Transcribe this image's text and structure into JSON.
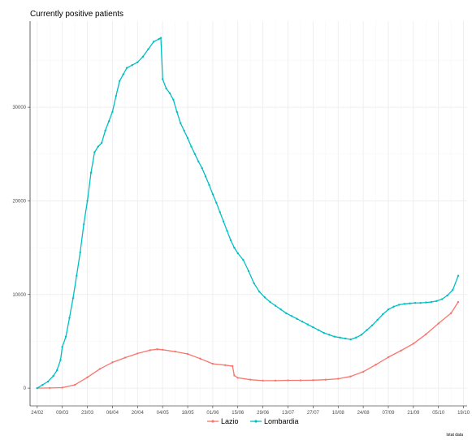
{
  "chart_data": {
    "type": "line",
    "title": "Currently positive patients",
    "caption": "Istat data",
    "x_tick_labels": [
      "24/02",
      "09/03",
      "23/03",
      "06/04",
      "20/04",
      "04/05",
      "18/05",
      "01/06",
      "15/06",
      "29/06",
      "13/07",
      "27/07",
      "10/08",
      "24/08",
      "07/09",
      "21/09",
      "05/10",
      "19/10"
    ],
    "x_tick_days": [
      0,
      14,
      28,
      42,
      56,
      70,
      84,
      98,
      112,
      126,
      140,
      154,
      168,
      182,
      196,
      210,
      224,
      238
    ],
    "y_ticks": [
      0,
      10000,
      20000,
      30000
    ],
    "y_tick_labels": [
      "0",
      "10000",
      "20000",
      "30000"
    ],
    "xlim_days": [
      -4,
      240
    ],
    "ylim": [
      -1900,
      39200
    ],
    "legend_position": "bottom",
    "grid": true,
    "series": [
      {
        "name": "Lazio",
        "color": "#F8766D",
        "points": [
          [
            0,
            0
          ],
          [
            7,
            15
          ],
          [
            14,
            50
          ],
          [
            21,
            350
          ],
          [
            28,
            1150
          ],
          [
            35,
            2050
          ],
          [
            42,
            2750
          ],
          [
            49,
            3250
          ],
          [
            56,
            3700
          ],
          [
            63,
            4050
          ],
          [
            67,
            4150
          ],
          [
            70,
            4100
          ],
          [
            77,
            3900
          ],
          [
            84,
            3650
          ],
          [
            91,
            3150
          ],
          [
            98,
            2600
          ],
          [
            105,
            2450
          ],
          [
            109,
            2350
          ],
          [
            110,
            1350
          ],
          [
            112,
            1100
          ],
          [
            119,
            900
          ],
          [
            126,
            800
          ],
          [
            133,
            800
          ],
          [
            140,
            830
          ],
          [
            147,
            830
          ],
          [
            154,
            850
          ],
          [
            161,
            900
          ],
          [
            168,
            1000
          ],
          [
            175,
            1250
          ],
          [
            182,
            1750
          ],
          [
            189,
            2500
          ],
          [
            196,
            3300
          ],
          [
            203,
            4000
          ],
          [
            210,
            4750
          ],
          [
            217,
            5750
          ],
          [
            224,
            6900
          ],
          [
            231,
            8000
          ],
          [
            235,
            9200
          ]
        ]
      },
      {
        "name": "Lombardia",
        "color": "#00BFC4",
        "points": [
          [
            0,
            0
          ],
          [
            3,
            350
          ],
          [
            6,
            700
          ],
          [
            9,
            1300
          ],
          [
            11,
            1900
          ],
          [
            13,
            3000
          ],
          [
            14,
            4400
          ],
          [
            16,
            5500
          ],
          [
            18,
            7500
          ],
          [
            20,
            9600
          ],
          [
            22,
            12000
          ],
          [
            24,
            14500
          ],
          [
            26,
            17500
          ],
          [
            28,
            20000
          ],
          [
            30,
            23000
          ],
          [
            32,
            25200
          ],
          [
            34,
            25800
          ],
          [
            36,
            26200
          ],
          [
            38,
            27500
          ],
          [
            40,
            28500
          ],
          [
            42,
            29500
          ],
          [
            44,
            31200
          ],
          [
            46,
            32800
          ],
          [
            48,
            33500
          ],
          [
            50,
            34200
          ],
          [
            53,
            34500
          ],
          [
            56,
            34800
          ],
          [
            59,
            35400
          ],
          [
            62,
            36200
          ],
          [
            65,
            37000
          ],
          [
            68,
            37300
          ],
          [
            69,
            37400
          ],
          [
            70,
            33000
          ],
          [
            72,
            32000
          ],
          [
            74,
            31500
          ],
          [
            76,
            30800
          ],
          [
            78,
            29500
          ],
          [
            80,
            28300
          ],
          [
            82,
            27500
          ],
          [
            84,
            26700
          ],
          [
            86,
            25800
          ],
          [
            88,
            25000
          ],
          [
            90,
            24200
          ],
          [
            92,
            23500
          ],
          [
            94,
            22600
          ],
          [
            96,
            21700
          ],
          [
            98,
            20700
          ],
          [
            100,
            19800
          ],
          [
            102,
            18800
          ],
          [
            104,
            17800
          ],
          [
            106,
            16800
          ],
          [
            108,
            15800
          ],
          [
            110,
            15000
          ],
          [
            112,
            14400
          ],
          [
            115,
            13700
          ],
          [
            118,
            12500
          ],
          [
            121,
            11200
          ],
          [
            124,
            10300
          ],
          [
            127,
            9700
          ],
          [
            130,
            9200
          ],
          [
            133,
            8800
          ],
          [
            136,
            8400
          ],
          [
            139,
            8000
          ],
          [
            142,
            7700
          ],
          [
            145,
            7400
          ],
          [
            148,
            7100
          ],
          [
            151,
            6800
          ],
          [
            154,
            6500
          ],
          [
            157,
            6200
          ],
          [
            160,
            5900
          ],
          [
            163,
            5700
          ],
          [
            166,
            5500
          ],
          [
            169,
            5400
          ],
          [
            172,
            5300
          ],
          [
            175,
            5200
          ],
          [
            178,
            5400
          ],
          [
            181,
            5700
          ],
          [
            184,
            6200
          ],
          [
            187,
            6700
          ],
          [
            190,
            7300
          ],
          [
            193,
            7900
          ],
          [
            196,
            8400
          ],
          [
            199,
            8700
          ],
          [
            202,
            8900
          ],
          [
            205,
            9000
          ],
          [
            208,
            9050
          ],
          [
            211,
            9100
          ],
          [
            214,
            9100
          ],
          [
            217,
            9150
          ],
          [
            220,
            9200
          ],
          [
            223,
            9300
          ],
          [
            226,
            9500
          ],
          [
            229,
            9900
          ],
          [
            232,
            10500
          ],
          [
            235,
            12000
          ]
        ]
      }
    ]
  }
}
